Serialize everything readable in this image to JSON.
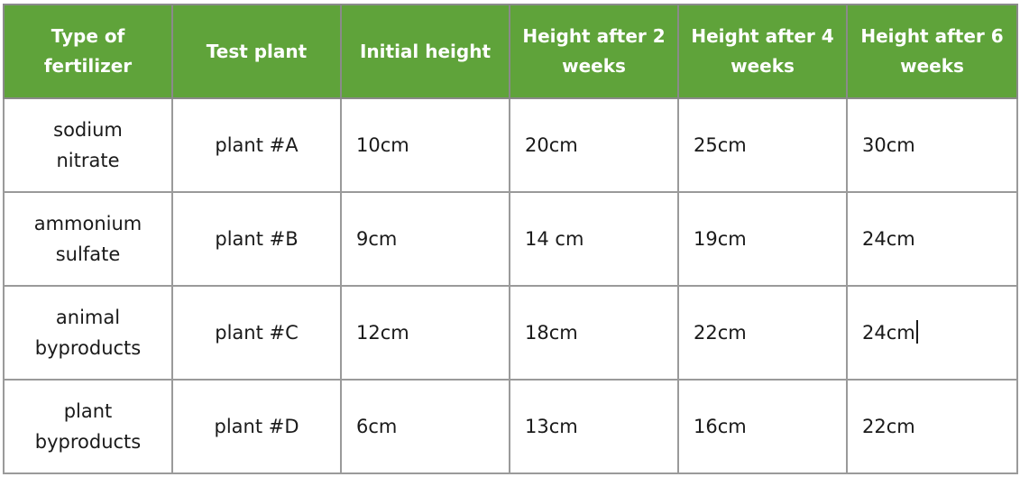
{
  "table": {
    "headers": [
      "Type of fertilizer",
      "Test plant",
      "Initial height",
      "Height after 2 weeks",
      "Height after 4 weeks",
      "Height after 6 weeks"
    ],
    "rows": [
      [
        "sodium nitrate",
        "plant #A",
        "10cm",
        "20cm",
        "25cm",
        "30cm"
      ],
      [
        "ammonium sulfate",
        "plant #B",
        "9cm",
        "14 cm",
        "19cm",
        "24cm"
      ],
      [
        "animal byproducts",
        "plant #C",
        "12cm",
        "18cm",
        "22cm",
        "24cm"
      ],
      [
        "plant byproducts",
        "plant #D",
        "6cm",
        "13cm",
        "16cm",
        "22cm"
      ]
    ]
  }
}
